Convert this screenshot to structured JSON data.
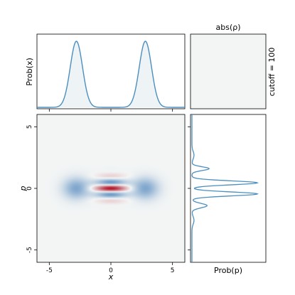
{
  "chart_data": [
    {
      "type": "heatmap",
      "panel": "wigner",
      "xlabel": "x",
      "ylabel": "p",
      "xlim": [
        -6,
        6
      ],
      "ylim": [
        -6,
        6
      ],
      "xticks": [
        -5,
        0,
        5
      ],
      "yticks": [
        -5,
        0,
        5
      ],
      "colormap": "diverging-red-blue",
      "state": {
        "peaks_x": [
          -2.8,
          2.8
        ],
        "gaussian_sigma": 0.75,
        "fringe_frequency_p": 2.8,
        "fringe_sigma_p": 0.55,
        "fringe_sigma_x": 0.85
      }
    },
    {
      "type": "line",
      "panel": "prob-x",
      "ylabel": "Prob(x)",
      "x_range": [
        -6,
        6
      ],
      "peaks_x": [
        -2.8,
        2.8
      ],
      "sigma": 0.5,
      "fill": true,
      "color": "#4b8fbf"
    },
    {
      "type": "line",
      "panel": "prob-p",
      "xlabel": "Prob(p)",
      "p_range": [
        -6,
        6
      ],
      "peaks_p": [
        0.45,
        -0.45
      ],
      "side_lobes_p": [
        1.6,
        -1.4
      ],
      "color": "#4b8fbf"
    },
    {
      "type": "heatmap",
      "panel": "abs-rho",
      "title": "abs(ρ)",
      "side_label": "cutoff = 100"
    }
  ],
  "colors": {
    "positive": "#b2182b",
    "negative": "#2166ac",
    "background": "#f3f5f5",
    "line": "#4b8fbf"
  }
}
